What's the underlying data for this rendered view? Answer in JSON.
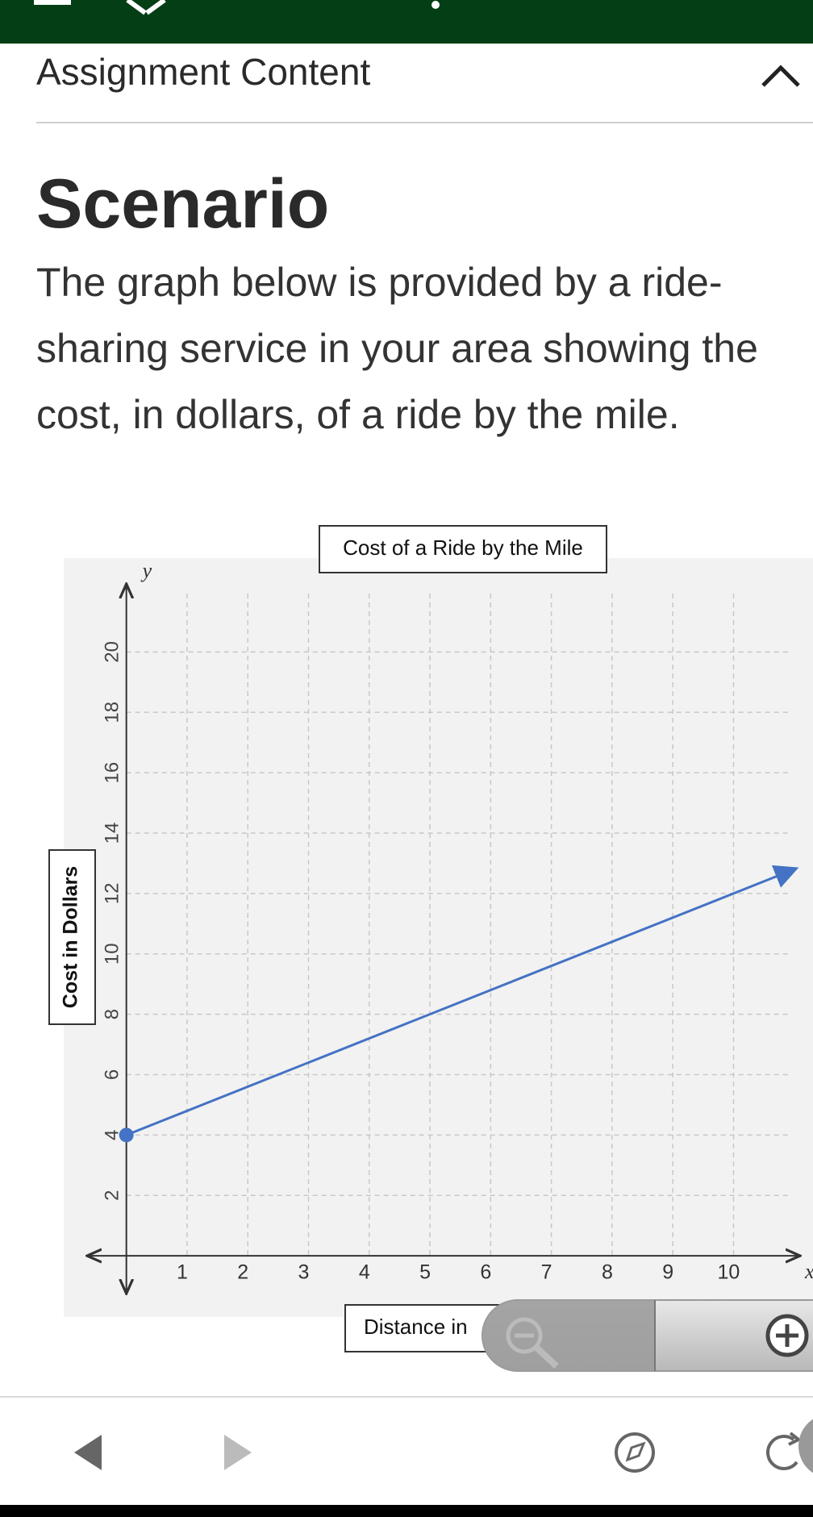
{
  "header": {
    "title": "Assignment Content"
  },
  "scenario": {
    "heading": "Scenario",
    "text": "The graph below is provided by a ride-sharing service in your area showing the cost, in dollars, of a ride by the mile."
  },
  "chart_data": {
    "type": "line",
    "title": "Cost of a Ride by the Mile",
    "x_label": "Distance in",
    "y_label": "Cost in Dollars",
    "x_symbol": "x",
    "y_symbol": "y",
    "x": [
      0,
      11
    ],
    "series": [
      {
        "name": "Cost",
        "color": "#4472c4",
        "values": [
          4,
          12.8
        ]
      }
    ],
    "xlim": [
      -0.62,
      11.07
    ],
    "ylim": [
      -1.2,
      22.2
    ],
    "xticks": [
      1,
      2,
      3,
      4,
      5,
      6,
      7,
      8,
      9,
      10
    ],
    "yticks": [
      2,
      4,
      6,
      8,
      10,
      12,
      14,
      16,
      18,
      20
    ],
    "grid": true
  }
}
